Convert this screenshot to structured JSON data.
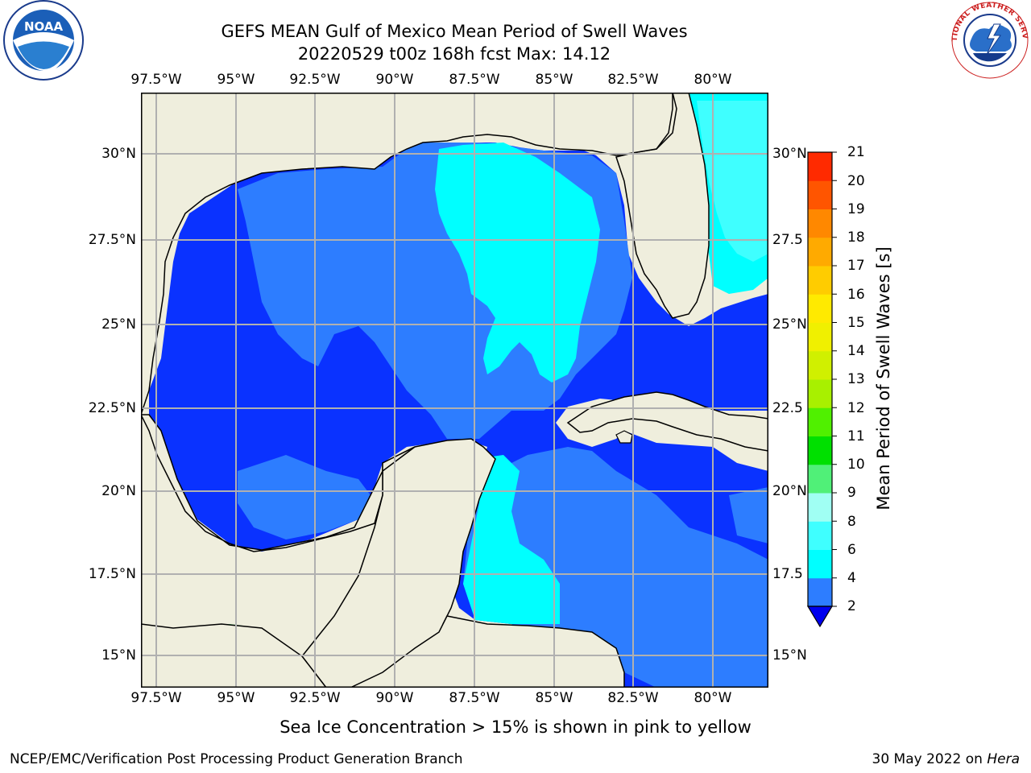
{
  "title": {
    "line1": "GEFS MEAN Gulf of Mexico Mean Period of Swell Waves",
    "line2": "20220529 t00z 168h fcst   Max: 14.12"
  },
  "logos": {
    "noaa": {
      "text": "NOAA",
      "ring_text": "NATIONAL OCEANIC AND ATMOSPHERIC ADMINISTRATION · U.S. DEPARTMENT OF COMMERCE"
    },
    "nws": {
      "ring_text": "NATIONAL WEATHER SERVICE"
    }
  },
  "map": {
    "lon_labels": [
      "97.5°W",
      "95°W",
      "92.5°W",
      "90°W",
      "87.5°W",
      "85°W",
      "82.5°W",
      "80°W"
    ],
    "lat_labels_left": [
      "30°N",
      "27.5°N",
      "25°N",
      "22.5°N",
      "20°N",
      "17.5°N",
      "15°N"
    ],
    "lat_labels_right": [
      "30°N",
      "27.5",
      "25°N",
      "22.5",
      "20°N",
      "17.5",
      "15°N"
    ],
    "colors": {
      "land": "#efeedd",
      "grid": "#b0b0b0",
      "coast": "#000000"
    }
  },
  "colorbar": {
    "label": "Mean Period of Swell Waves [s]",
    "ticks": [
      "2",
      "4",
      "6",
      "8",
      "9",
      "10",
      "11",
      "12",
      "13",
      "14",
      "15",
      "16",
      "17",
      "18",
      "19",
      "20",
      "21"
    ],
    "colors": [
      "#0a32ff",
      "#2d7dff",
      "#00ffff",
      "#3fffff",
      "#a0fff3",
      "#50f078",
      "#00e000",
      "#50f000",
      "#a8f000",
      "#d0f000",
      "#f0f000",
      "#ffea00",
      "#ffcc00",
      "#ffaa00",
      "#ff8800",
      "#ff5500",
      "#ff2a00",
      "#ff0000"
    ],
    "extend_color": "#0000ee"
  },
  "ice_note": "Sea Ice Concentration > 15% is shown in pink to yellow",
  "footer": {
    "left": "NCEP/EMC/Verification Post Processing Product Generation Branch",
    "right_date": "30 May 2022 on ",
    "right_host": "Hera"
  }
}
